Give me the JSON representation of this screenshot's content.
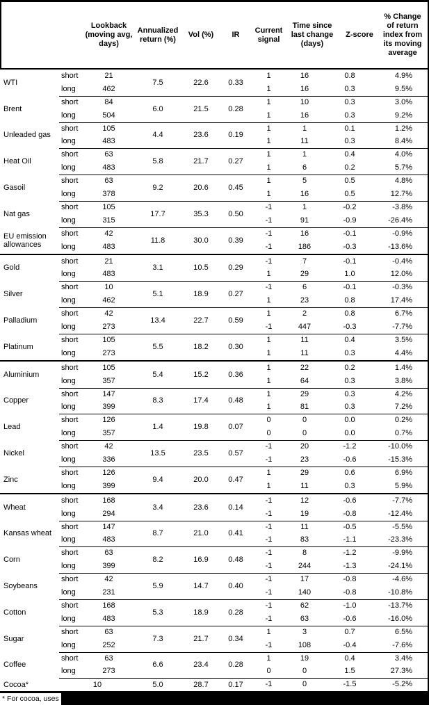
{
  "colors": {
    "text": "#000000",
    "background": "#ffffff",
    "border": "#000000",
    "redaction": "#000000"
  },
  "table": {
    "columns": [
      {
        "id": "lookback",
        "label": "Lookback (moving avg, days)"
      },
      {
        "id": "annualized_return",
        "label": "Annualized return (%)"
      },
      {
        "id": "vol",
        "label": "Vol (%)"
      },
      {
        "id": "ir",
        "label": "IR"
      },
      {
        "id": "current_signal",
        "label": "Current signal"
      },
      {
        "id": "time_since",
        "label": "Time since last change (days)"
      },
      {
        "id": "zscore",
        "label": "Z-score"
      },
      {
        "id": "pct_change",
        "label": "% Change of return index from its moving average"
      }
    ],
    "sections": [
      {
        "id": "energy",
        "commodities": [
          {
            "name": "WTI",
            "annualized_return": "7.5",
            "vol": "22.6",
            "ir": "0.33",
            "rows": [
              {
                "pos": "short",
                "lookback": "21",
                "signal": "1",
                "time_since": "16",
                "zscore": "0.8",
                "pct_change": "4.9%"
              },
              {
                "pos": "long",
                "lookback": "462",
                "signal": "1",
                "time_since": "16",
                "zscore": "0.3",
                "pct_change": "9.5%"
              }
            ]
          },
          {
            "name": "Brent",
            "annualized_return": "6.0",
            "vol": "21.5",
            "ir": "0.28",
            "rows": [
              {
                "pos": "short",
                "lookback": "84",
                "signal": "1",
                "time_since": "10",
                "zscore": "0.3",
                "pct_change": "3.0%"
              },
              {
                "pos": "long",
                "lookback": "504",
                "signal": "1",
                "time_since": "16",
                "zscore": "0.3",
                "pct_change": "9.2%"
              }
            ]
          },
          {
            "name": "Unleaded gas",
            "annualized_return": "4.4",
            "vol": "23.6",
            "ir": "0.19",
            "rows": [
              {
                "pos": "short",
                "lookback": "105",
                "signal": "1",
                "time_since": "1",
                "zscore": "0.1",
                "pct_change": "1.2%"
              },
              {
                "pos": "long",
                "lookback": "483",
                "signal": "1",
                "time_since": "11",
                "zscore": "0.3",
                "pct_change": "8.4%"
              }
            ]
          },
          {
            "name": "Heat Oil",
            "annualized_return": "5.8",
            "vol": "21.7",
            "ir": "0.27",
            "rows": [
              {
                "pos": "short",
                "lookback": "63",
                "signal": "1",
                "time_since": "1",
                "zscore": "0.4",
                "pct_change": "4.0%"
              },
              {
                "pos": "long",
                "lookback": "483",
                "signal": "1",
                "time_since": "6",
                "zscore": "0.2",
                "pct_change": "5.7%"
              }
            ]
          },
          {
            "name": "Gasoil",
            "annualized_return": "9.2",
            "vol": "20.6",
            "ir": "0.45",
            "rows": [
              {
                "pos": "short",
                "lookback": "63",
                "signal": "1",
                "time_since": "5",
                "zscore": "0.5",
                "pct_change": "4.8%"
              },
              {
                "pos": "long",
                "lookback": "378",
                "signal": "1",
                "time_since": "16",
                "zscore": "0.5",
                "pct_change": "12.7%"
              }
            ]
          },
          {
            "name": "Nat gas",
            "annualized_return": "17.7",
            "vol": "35.3",
            "ir": "0.50",
            "rows": [
              {
                "pos": "short",
                "lookback": "105",
                "signal": "-1",
                "time_since": "1",
                "zscore": "-0.2",
                "pct_change": "-3.8%"
              },
              {
                "pos": "long",
                "lookback": "315",
                "signal": "-1",
                "time_since": "91",
                "zscore": "-0.9",
                "pct_change": "-26.4%"
              }
            ]
          },
          {
            "name": "EU emission allowances",
            "annualized_return": "11.8",
            "vol": "30.0",
            "ir": "0.39",
            "rows": [
              {
                "pos": "short",
                "lookback": "42",
                "signal": "-1",
                "time_since": "16",
                "zscore": "-0.1",
                "pct_change": "-0.9%"
              },
              {
                "pos": "long",
                "lookback": "483",
                "signal": "-1",
                "time_since": "186",
                "zscore": "-0.3",
                "pct_change": "-13.6%"
              }
            ]
          }
        ]
      },
      {
        "id": "precious-metals",
        "commodities": [
          {
            "name": "Gold",
            "annualized_return": "3.1",
            "vol": "10.5",
            "ir": "0.29",
            "rows": [
              {
                "pos": "short",
                "lookback": "21",
                "signal": "-1",
                "time_since": "7",
                "zscore": "-0.1",
                "pct_change": "-0.4%"
              },
              {
                "pos": "long",
                "lookback": "483",
                "signal": "1",
                "time_since": "29",
                "zscore": "1.0",
                "pct_change": "12.0%"
              }
            ]
          },
          {
            "name": "Silver",
            "annualized_return": "5.1",
            "vol": "18.9",
            "ir": "0.27",
            "rows": [
              {
                "pos": "short",
                "lookback": "10",
                "signal": "-1",
                "time_since": "6",
                "zscore": "-0.1",
                "pct_change": "-0.3%"
              },
              {
                "pos": "long",
                "lookback": "462",
                "signal": "1",
                "time_since": "23",
                "zscore": "0.8",
                "pct_change": "17.4%"
              }
            ]
          },
          {
            "name": "Palladium",
            "annualized_return": "13.4",
            "vol": "22.7",
            "ir": "0.59",
            "rows": [
              {
                "pos": "short",
                "lookback": "42",
                "signal": "1",
                "time_since": "2",
                "zscore": "0.8",
                "pct_change": "6.7%"
              },
              {
                "pos": "long",
                "lookback": "273",
                "signal": "-1",
                "time_since": "447",
                "zscore": "-0.3",
                "pct_change": "-7.7%"
              }
            ]
          },
          {
            "name": "Platinum",
            "annualized_return": "5.5",
            "vol": "18.2",
            "ir": "0.30",
            "rows": [
              {
                "pos": "short",
                "lookback": "105",
                "signal": "1",
                "time_since": "11",
                "zscore": "0.4",
                "pct_change": "3.5%"
              },
              {
                "pos": "long",
                "lookback": "273",
                "signal": "1",
                "time_since": "11",
                "zscore": "0.3",
                "pct_change": "4.4%"
              }
            ]
          }
        ]
      },
      {
        "id": "base-metals",
        "commodities": [
          {
            "name": "Aluminium",
            "annualized_return": "5.4",
            "vol": "15.2",
            "ir": "0.36",
            "rows": [
              {
                "pos": "short",
                "lookback": "105",
                "signal": "1",
                "time_since": "22",
                "zscore": "0.2",
                "pct_change": "1.4%"
              },
              {
                "pos": "long",
                "lookback": "357",
                "signal": "1",
                "time_since": "64",
                "zscore": "0.3",
                "pct_change": "3.8%"
              }
            ]
          },
          {
            "name": "Copper",
            "annualized_return": "8.3",
            "vol": "17.4",
            "ir": "0.48",
            "rows": [
              {
                "pos": "short",
                "lookback": "147",
                "signal": "1",
                "time_since": "29",
                "zscore": "0.3",
                "pct_change": "4.2%"
              },
              {
                "pos": "long",
                "lookback": "399",
                "signal": "1",
                "time_since": "81",
                "zscore": "0.3",
                "pct_change": "7.2%"
              }
            ]
          },
          {
            "name": "Lead",
            "annualized_return": "1.4",
            "vol": "19.8",
            "ir": "0.07",
            "rows": [
              {
                "pos": "short",
                "lookback": "126",
                "signal": "0",
                "time_since": "0",
                "zscore": "0.0",
                "pct_change": "0.2%"
              },
              {
                "pos": "long",
                "lookback": "357",
                "signal": "0",
                "time_since": "0",
                "zscore": "0.0",
                "pct_change": "0.7%"
              }
            ]
          },
          {
            "name": "Nickel",
            "annualized_return": "13.5",
            "vol": "23.5",
            "ir": "0.57",
            "rows": [
              {
                "pos": "short",
                "lookback": "42",
                "signal": "-1",
                "time_since": "20",
                "zscore": "-1.2",
                "pct_change": "-10.0%"
              },
              {
                "pos": "long",
                "lookback": "336",
                "signal": "-1",
                "time_since": "23",
                "zscore": "-0.6",
                "pct_change": "-15.3%"
              }
            ]
          },
          {
            "name": "Zinc",
            "annualized_return": "9.4",
            "vol": "20.0",
            "ir": "0.47",
            "rows": [
              {
                "pos": "short",
                "lookback": "126",
                "signal": "1",
                "time_since": "29",
                "zscore": "0.6",
                "pct_change": "6.9%"
              },
              {
                "pos": "long",
                "lookback": "399",
                "signal": "1",
                "time_since": "11",
                "zscore": "0.3",
                "pct_change": "5.9%"
              }
            ]
          }
        ]
      },
      {
        "id": "agriculture",
        "commodities": [
          {
            "name": "Wheat",
            "annualized_return": "3.4",
            "vol": "23.6",
            "ir": "0.14",
            "rows": [
              {
                "pos": "short",
                "lookback": "168",
                "signal": "-1",
                "time_since": "12",
                "zscore": "-0.6",
                "pct_change": "-7.7%"
              },
              {
                "pos": "long",
                "lookback": "294",
                "signal": "-1",
                "time_since": "19",
                "zscore": "-0.8",
                "pct_change": "-12.4%"
              }
            ]
          },
          {
            "name": "Kansas wheat",
            "annualized_return": "8.7",
            "vol": "21.0",
            "ir": "0.41",
            "rows": [
              {
                "pos": "short",
                "lookback": "147",
                "signal": "-1",
                "time_since": "11",
                "zscore": "-0.5",
                "pct_change": "-5.5%"
              },
              {
                "pos": "long",
                "lookback": "483",
                "signal": "-1",
                "time_since": "83",
                "zscore": "-1.1",
                "pct_change": "-23.3%"
              }
            ]
          },
          {
            "name": "Corn",
            "annualized_return": "8.2",
            "vol": "16.9",
            "ir": "0.48",
            "rows": [
              {
                "pos": "short",
                "lookback": "63",
                "signal": "-1",
                "time_since": "8",
                "zscore": "-1.2",
                "pct_change": "-9.9%"
              },
              {
                "pos": "long",
                "lookback": "399",
                "signal": "-1",
                "time_since": "244",
                "zscore": "-1.3",
                "pct_change": "-24.1%"
              }
            ]
          },
          {
            "name": "Soybeans",
            "annualized_return": "5.9",
            "vol": "14.7",
            "ir": "0.40",
            "rows": [
              {
                "pos": "short",
                "lookback": "42",
                "signal": "-1",
                "time_since": "17",
                "zscore": "-0.8",
                "pct_change": "-4.6%"
              },
              {
                "pos": "long",
                "lookback": "231",
                "signal": "-1",
                "time_since": "140",
                "zscore": "-0.8",
                "pct_change": "-10.8%"
              }
            ]
          },
          {
            "name": "Cotton",
            "annualized_return": "5.3",
            "vol": "18.9",
            "ir": "0.28",
            "rows": [
              {
                "pos": "short",
                "lookback": "168",
                "signal": "-1",
                "time_since": "62",
                "zscore": "-1.0",
                "pct_change": "-13.7%"
              },
              {
                "pos": "long",
                "lookback": "483",
                "signal": "-1",
                "time_since": "63",
                "zscore": "-0.6",
                "pct_change": "-16.0%"
              }
            ]
          },
          {
            "name": "Sugar",
            "annualized_return": "7.3",
            "vol": "21.7",
            "ir": "0.34",
            "rows": [
              {
                "pos": "short",
                "lookback": "63",
                "signal": "1",
                "time_since": "3",
                "zscore": "0.7",
                "pct_change": "6.5%"
              },
              {
                "pos": "long",
                "lookback": "252",
                "signal": "-1",
                "time_since": "108",
                "zscore": "-0.4",
                "pct_change": "-7.6%"
              }
            ]
          },
          {
            "name": "Coffee",
            "annualized_return": "6.6",
            "vol": "23.4",
            "ir": "0.28",
            "rows": [
              {
                "pos": "short",
                "lookback": "63",
                "signal": "1",
                "time_since": "19",
                "zscore": "0.4",
                "pct_change": "3.4%"
              },
              {
                "pos": "long",
                "lookback": "273",
                "signal": "0",
                "time_since": "0",
                "zscore": "1.5",
                "pct_change": "27.3%"
              }
            ]
          },
          {
            "name": "Cocoa*",
            "annualized_return": "5.0",
            "vol": "28.7",
            "ir": "0.17",
            "rows": [
              {
                "pos": "",
                "lookback": "10",
                "signal": "-1",
                "time_since": "0",
                "zscore": "-1.5",
                "pct_change": "-5.2%"
              }
            ]
          }
        ]
      }
    ]
  },
  "footnote": {
    "text": "* For cocoa, uses c",
    "redacted": true
  }
}
